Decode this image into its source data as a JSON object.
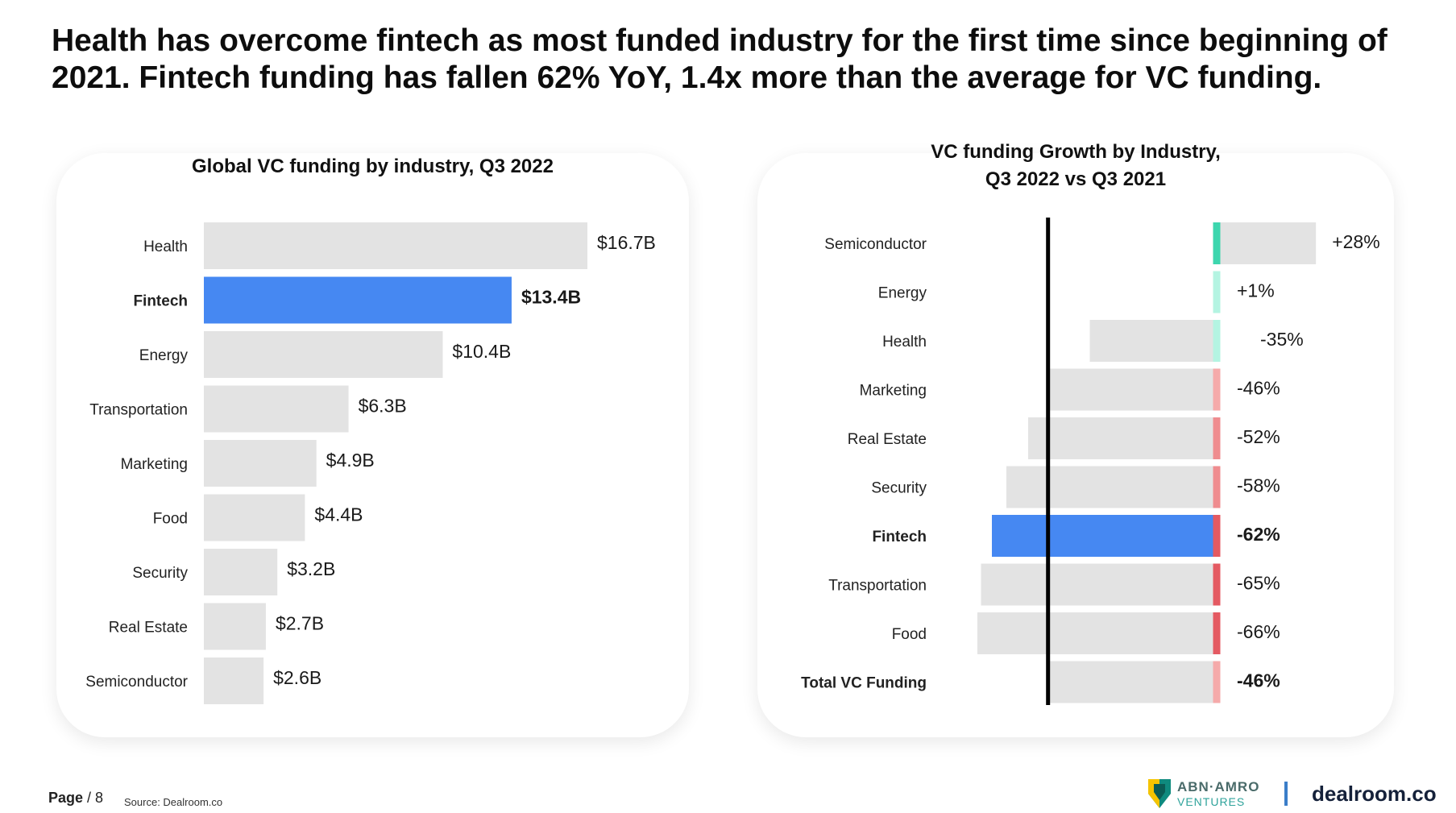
{
  "headline": "Health has overcome fintech as most funded industry for the first time since beginning of 2021. Fintech funding has fallen 62% YoY, 1.4x more than the average for VC funding.",
  "colors": {
    "bar_default": "#e3e3e3",
    "highlight": "#4688f2",
    "growth_strong_positive": "#3dd6ae",
    "growth_light_positive": "#b4f4e2",
    "growth_light_negative": "#f5aaaa",
    "growth_mid_negative": "#ef8c8f",
    "growth_strong_negative": "#e45a62",
    "zero_line": "#000000"
  },
  "chart_data": [
    {
      "type": "bar",
      "orientation": "horizontal",
      "title": "Global VC funding by industry, Q3 2022",
      "unit": "$B",
      "highlight": "Fintech",
      "categories": [
        "Health",
        "Fintech",
        "Energy",
        "Transportation",
        "Marketing",
        "Food",
        "Security",
        "Real Estate",
        "Semiconductor"
      ],
      "values": [
        16.7,
        13.4,
        10.4,
        6.3,
        4.9,
        4.4,
        3.2,
        2.7,
        2.6
      ],
      "labels": [
        "$16.7B",
        "$13.4B",
        "$10.4B",
        "$6.3B",
        "$4.9B",
        "$4.4B",
        "$3.2B",
        "$2.7B",
        "$2.6B"
      ],
      "xlim": [
        0,
        16.7
      ]
    },
    {
      "type": "bar",
      "orientation": "horizontal",
      "title": "VC funding Growth by Industry,\nQ3 2022 vs Q3 2021",
      "title_lines": [
        "VC funding Growth by Industry,",
        "Q3 2022 vs Q3 2021"
      ],
      "unit": "%",
      "highlight": "Fintech",
      "bold_categories": [
        "Fintech",
        "Total VC Funding"
      ],
      "categories": [
        "Semiconductor",
        "Energy",
        "Health",
        "Marketing",
        "Real Estate",
        "Security",
        "Fintech",
        "Transportation",
        "Food",
        "Total VC Funding"
      ],
      "values": [
        28,
        1,
        -35,
        -46,
        -52,
        -58,
        -62,
        -65,
        -66,
        -46
      ],
      "labels": [
        "+28%",
        "+1%",
        "-35%",
        "-46%",
        "-52%",
        "-58%",
        "-62%",
        "-65%",
        "-66%",
        "-46%"
      ],
      "reference_value": -46,
      "xlim": [
        -66,
        28
      ]
    }
  ],
  "footer": {
    "page_word": "Page",
    "page_rest": " / 8",
    "source": "Source: Dealroom.co",
    "abn_line1": "ABN·AMRO",
    "abn_line2": "VENTURES",
    "dealroom": "dealroom.co"
  }
}
